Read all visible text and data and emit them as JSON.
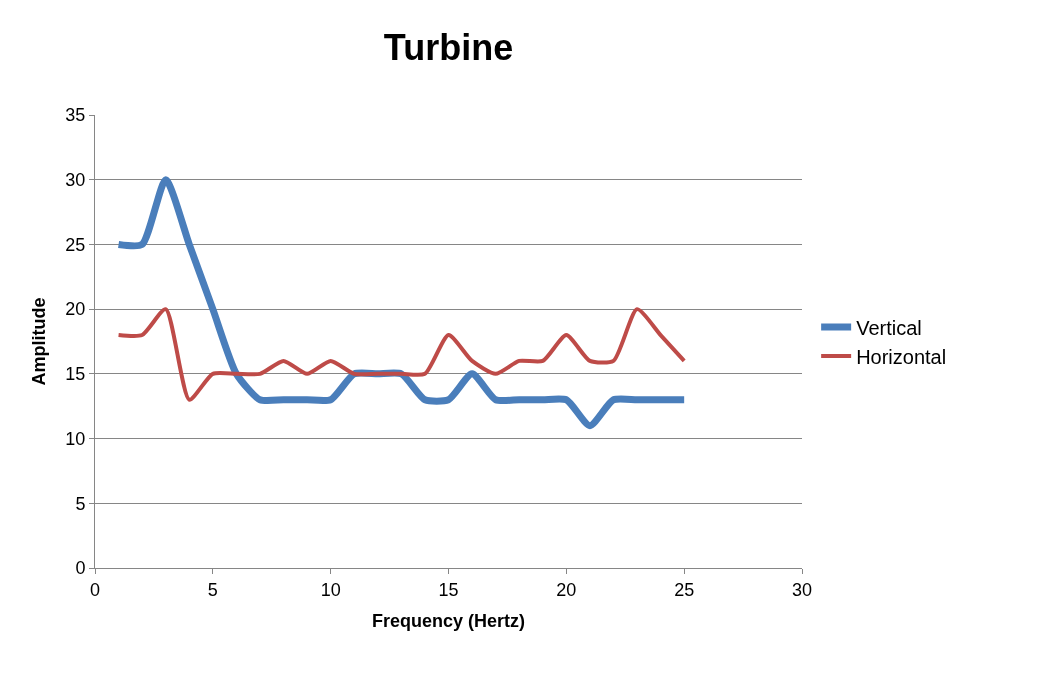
{
  "chart_data": {
    "type": "line",
    "title": "Turbine",
    "xlabel": "Frequency (Hertz)",
    "ylabel": "Amplitude",
    "x": [
      1,
      2,
      3,
      4,
      5,
      6,
      7,
      8,
      9,
      10,
      11,
      12,
      13,
      14,
      15,
      16,
      17,
      18,
      19,
      20,
      21,
      22,
      23,
      24,
      25
    ],
    "series": [
      {
        "name": "Vertical",
        "color": "#4a7ebb",
        "values": [
          25,
          25,
          30,
          25,
          20,
          15,
          13,
          13,
          13,
          13,
          15,
          15,
          15,
          13,
          13,
          15,
          13,
          13,
          13,
          13,
          11,
          13,
          13,
          13,
          13
        ]
      },
      {
        "name": "Horizontal",
        "color": "#be4b48",
        "values": [
          18,
          18,
          20,
          13,
          15,
          15,
          15,
          16,
          15,
          16,
          15,
          15,
          15,
          15,
          18,
          16,
          15,
          16,
          16,
          18,
          16,
          16,
          20,
          18,
          16
        ]
      }
    ],
    "xlim": [
      0,
      30
    ],
    "xticks": [
      0,
      5,
      10,
      15,
      20,
      25,
      30
    ],
    "ylim": [
      0,
      35
    ],
    "yticks": [
      0,
      5,
      10,
      15,
      20,
      25,
      30,
      35
    ],
    "grid": "y",
    "legend": "right",
    "marker": "none",
    "line_style": "solid"
  }
}
